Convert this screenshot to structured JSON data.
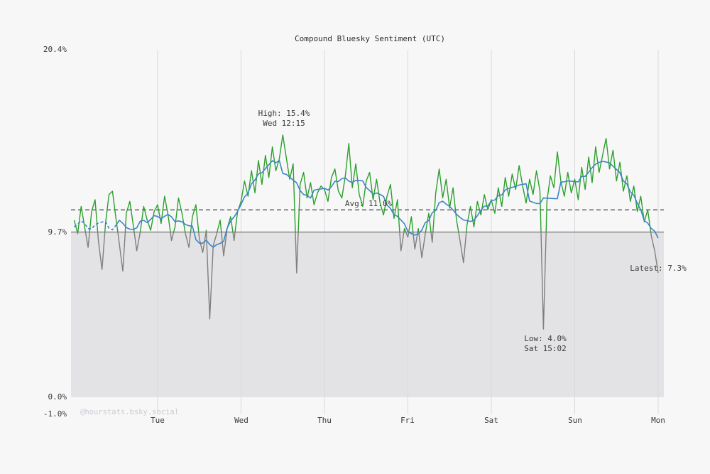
{
  "chart_data": {
    "type": "line",
    "title": "Compound Bluesky Sentiment (UTC)",
    "x_unit": "hours from Monday 00:00 UTC",
    "x_range": [
      0,
      168
    ],
    "ylim": [
      -1.0,
      20.4
    ],
    "grid": "vertical-day-lines",
    "x_ticks": [
      {
        "hour": 24,
        "label": "Tue"
      },
      {
        "hour": 48,
        "label": "Wed"
      },
      {
        "hour": 72,
        "label": "Thu"
      },
      {
        "hour": 96,
        "label": "Fri"
      },
      {
        "hour": 120,
        "label": "Sat"
      },
      {
        "hour": 144,
        "label": "Sun"
      },
      {
        "hour": 168,
        "label": "Mon"
      }
    ],
    "y_ticks": [
      {
        "value": 20.4,
        "label": "20.4%"
      },
      {
        "value": 9.7,
        "label": "9.7%"
      },
      {
        "value": 0.0,
        "label": "0.0%"
      },
      {
        "value": -1.0,
        "label": "-1.0%"
      }
    ],
    "threshold": 9.7,
    "average": 11.0,
    "high": {
      "value": 15.4,
      "hour": 60,
      "time_label": "Wed 12:15"
    },
    "low": {
      "value": 4.0,
      "hour": 135,
      "time_label": "Sat 15:02"
    },
    "latest": 7.3,
    "colors": {
      "above": "#2ca02c",
      "below": "#7f7f7f",
      "smooth": "#3d85c8",
      "shade": "#e3e3e5",
      "grid": "#d9d9dc",
      "threshold_line": "#4d4d4d",
      "avg_line": "#2b2b2b"
    },
    "series": [
      {
        "name": "sentiment",
        "style": "raw-split-by-threshold",
        "values": [
          10.4,
          9.6,
          11.2,
          10.0,
          8.8,
          10.9,
          11.6,
          9.1,
          7.5,
          10.2,
          11.9,
          12.1,
          10.5,
          9.0,
          7.4,
          10.8,
          11.5,
          10.1,
          8.6,
          9.7,
          11.2,
          10.4,
          9.8,
          10.9,
          11.3,
          10.2,
          11.8,
          10.7,
          9.2,
          10.0,
          11.7,
          10.8,
          9.6,
          8.8,
          10.6,
          11.3,
          9.3,
          8.5,
          9.8,
          4.6,
          8.9,
          9.6,
          10.4,
          8.3,
          9.9,
          10.6,
          9.2,
          10.9,
          11.5,
          12.7,
          11.8,
          13.3,
          12.0,
          13.9,
          12.5,
          14.2,
          12.9,
          14.7,
          13.3,
          14.0,
          15.4,
          14.1,
          12.8,
          13.7,
          7.3,
          12.5,
          13.2,
          11.7,
          12.6,
          11.3,
          12.0,
          12.4,
          12.2,
          11.5,
          12.9,
          13.4,
          12.1,
          11.7,
          13.0,
          14.9,
          12.3,
          13.7,
          11.9,
          11.2,
          12.7,
          13.2,
          11.6,
          12.8,
          11.4,
          10.7,
          11.8,
          12.5,
          10.5,
          11.6,
          8.6,
          9.9,
          9.4,
          10.6,
          8.7,
          9.9,
          8.2,
          9.6,
          10.8,
          9.1,
          12.0,
          13.4,
          11.7,
          12.8,
          11.1,
          12.3,
          10.4,
          9.2,
          7.9,
          10.1,
          11.2,
          10.0,
          11.5,
          10.7,
          11.9,
          11.0,
          11.6,
          10.8,
          12.3,
          11.2,
          12.9,
          11.8,
          13.1,
          12.2,
          13.6,
          12.4,
          11.4,
          12.8,
          11.9,
          13.3,
          12.1,
          4.0,
          11.5,
          13.0,
          12.3,
          14.4,
          12.7,
          11.8,
          13.2,
          12.0,
          12.8,
          11.6,
          13.5,
          12.2,
          14.1,
          12.6,
          14.7,
          13.2,
          14.2,
          15.2,
          13.4,
          14.5,
          12.7,
          13.8,
          12.1,
          13.0,
          11.5,
          12.4,
          10.9,
          11.8,
          10.3,
          11.0,
          9.5,
          8.6,
          7.3
        ]
      },
      {
        "name": "smoothed-moving-average",
        "style": "smoothed",
        "window": 9,
        "dashed_lead_points": 12
      }
    ],
    "annotations": {
      "high_line1": "High: 15.4%",
      "high_line2": "Wed 12:15",
      "avg_label": "Avg: 11.0%",
      "low_line1": "Low: 4.0%",
      "low_line2": "Sat 15:02",
      "latest_label": "Latest: 7.3%"
    },
    "watermark": "@hourstats.bsky.social"
  }
}
